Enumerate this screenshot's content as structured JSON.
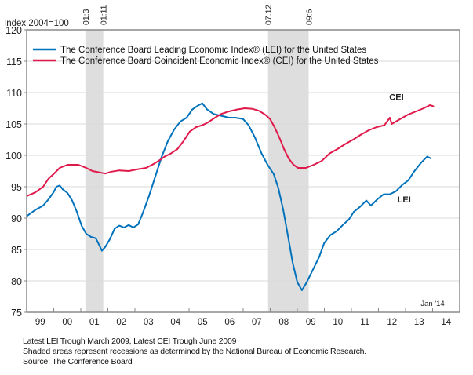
{
  "chart_data": {
    "type": "line",
    "ylabel": "Index 2004=100",
    "ylim": [
      75,
      120
    ],
    "yticks": [
      120,
      115,
      110,
      105,
      100,
      95,
      90,
      85,
      80,
      75
    ],
    "xlim": [
      1999.0,
      2015.0
    ],
    "xticks": [
      {
        "label": "99",
        "year": 1999
      },
      {
        "label": "00",
        "year": 2000
      },
      {
        "label": "01",
        "year": 2001
      },
      {
        "label": "02",
        "year": 2002
      },
      {
        "label": "03",
        "year": 2003
      },
      {
        "label": "04",
        "year": 2004
      },
      {
        "label": "05",
        "year": 2005
      },
      {
        "label": "06",
        "year": 2006
      },
      {
        "label": "07",
        "year": 2007
      },
      {
        "label": "08",
        "year": 2008
      },
      {
        "label": "09",
        "year": 2009
      },
      {
        "label": "10",
        "year": 2010
      },
      {
        "label": "11",
        "year": 2011
      },
      {
        "label": "12",
        "year": 2012
      },
      {
        "label": "13",
        "year": 2013
      },
      {
        "label": "14",
        "year": 2014
      }
    ],
    "grid": true,
    "legend_position": "top-left",
    "recessions": [
      {
        "start": 2001.17,
        "end": 2001.83,
        "start_label": "01:3",
        "end_label": "01:11"
      },
      {
        "start": 2007.92,
        "end": 2009.42,
        "start_label": "07:12",
        "end_label": "09:6"
      }
    ],
    "annotation_latest": "Jan '14",
    "annotation_latest_year": 2014.0,
    "series": [
      {
        "name": "The Conference Board Leading Economic Index® (LEI) for the United States",
        "short_label": "LEI",
        "label_year": 2012.7,
        "label_value": 92.5,
        "color": "#0072bc",
        "x": [
          1999.0,
          1999.32,
          1999.61,
          1999.81,
          1999.99,
          2000.1,
          2000.22,
          2000.33,
          2000.51,
          2000.68,
          2000.855,
          2001.03,
          2001.2,
          2001.38,
          2001.55,
          2001.67,
          2001.78,
          2001.9,
          2002.07,
          2002.25,
          2002.42,
          2002.6,
          2002.77,
          2002.94,
          2003.12,
          2003.29,
          2003.52,
          2003.75,
          2003.99,
          2004.22,
          2004.45,
          2004.68,
          2004.91,
          2005.12,
          2005.32,
          2005.49,
          2005.67,
          2005.9,
          2006.19,
          2006.48,
          2006.71,
          2006.99,
          2007.2,
          2007.43,
          2007.67,
          2007.9,
          2008.13,
          2008.3,
          2008.48,
          2008.65,
          2008.83,
          2009.0,
          2009.17,
          2009.35,
          2009.58,
          2009.81,
          2009.99,
          2010.22,
          2010.45,
          2010.68,
          2010.91,
          2011.09,
          2011.32,
          2011.55,
          2011.72,
          2011.96,
          2012.19,
          2012.42,
          2012.65,
          2012.88,
          2013.1,
          2013.33,
          2013.57,
          2013.8,
          2013.94
        ],
        "values": [
          90.3,
          91.3,
          92.0,
          93.0,
          94.1,
          95.0,
          95.2,
          94.6,
          94.0,
          92.8,
          91.0,
          88.8,
          87.5,
          87.0,
          86.8,
          85.8,
          84.8,
          85.4,
          86.6,
          88.3,
          88.8,
          88.5,
          88.9,
          88.5,
          89.0,
          90.8,
          93.5,
          96.6,
          99.8,
          102.3,
          104.1,
          105.4,
          106.0,
          107.3,
          107.9,
          108.3,
          107.3,
          106.6,
          106.3,
          106.0,
          106.0,
          105.8,
          104.8,
          102.9,
          100.4,
          98.5,
          97.0,
          94.8,
          91.3,
          87.3,
          82.9,
          79.8,
          78.5,
          79.8,
          81.8,
          83.8,
          86.0,
          87.3,
          87.9,
          88.9,
          89.8,
          91.0,
          91.8,
          92.8,
          92.0,
          93.0,
          93.8,
          93.8,
          94.3,
          95.3,
          96.0,
          97.5,
          98.8,
          99.8,
          99.5
        ]
      },
      {
        "name": "The Conference Board Coincident Economic Index® (CEI) for the United States",
        "short_label": "CEI",
        "label_year": 2012.4,
        "label_value": 108.8,
        "color": "#e0194b",
        "x": [
          1999.0,
          1999.32,
          1999.61,
          1999.81,
          1999.99,
          2000.22,
          2000.51,
          2000.91,
          2001.2,
          2001.43,
          2001.67,
          2001.9,
          2002.13,
          2002.42,
          2002.77,
          2003.12,
          2003.41,
          2003.64,
          2003.87,
          2004.1,
          2004.33,
          2004.57,
          2004.8,
          2005.03,
          2005.26,
          2005.49,
          2005.72,
          2005.96,
          2006.19,
          2006.48,
          2006.77,
          2007.06,
          2007.35,
          2007.58,
          2007.81,
          2007.99,
          2008.16,
          2008.33,
          2008.51,
          2008.68,
          2008.86,
          2009.03,
          2009.32,
          2009.61,
          2009.9,
          2010.19,
          2010.48,
          2010.77,
          2011.06,
          2011.35,
          2011.64,
          2011.93,
          2012.22,
          2012.42,
          2012.49,
          2012.81,
          2013.1,
          2013.39,
          2013.67,
          2013.9,
          2014.04
        ],
        "values": [
          93.5,
          94.1,
          95.0,
          96.3,
          97.0,
          98.0,
          98.5,
          98.5,
          98.0,
          97.5,
          97.3,
          97.1,
          97.4,
          97.6,
          97.5,
          97.8,
          98.0,
          98.5,
          99.1,
          99.8,
          100.3,
          101.0,
          102.3,
          103.8,
          104.5,
          104.8,
          105.3,
          106.0,
          106.6,
          107.0,
          107.3,
          107.5,
          107.4,
          107.1,
          106.5,
          105.8,
          104.5,
          102.9,
          101.0,
          99.5,
          98.5,
          98.0,
          98.0,
          98.5,
          99.1,
          100.3,
          101.0,
          101.8,
          102.5,
          103.3,
          104.0,
          104.5,
          104.8,
          106.0,
          105.0,
          105.8,
          106.5,
          107.0,
          107.5,
          108.0,
          107.8
        ]
      }
    ]
  },
  "footnotes": [
    "Latest LEI Trough March 2009, Latest CEI Trough June 2009",
    "Shaded areas represent recessions as determined by the National Bureau of Economic Research.",
    "Source: The Conference Board"
  ]
}
